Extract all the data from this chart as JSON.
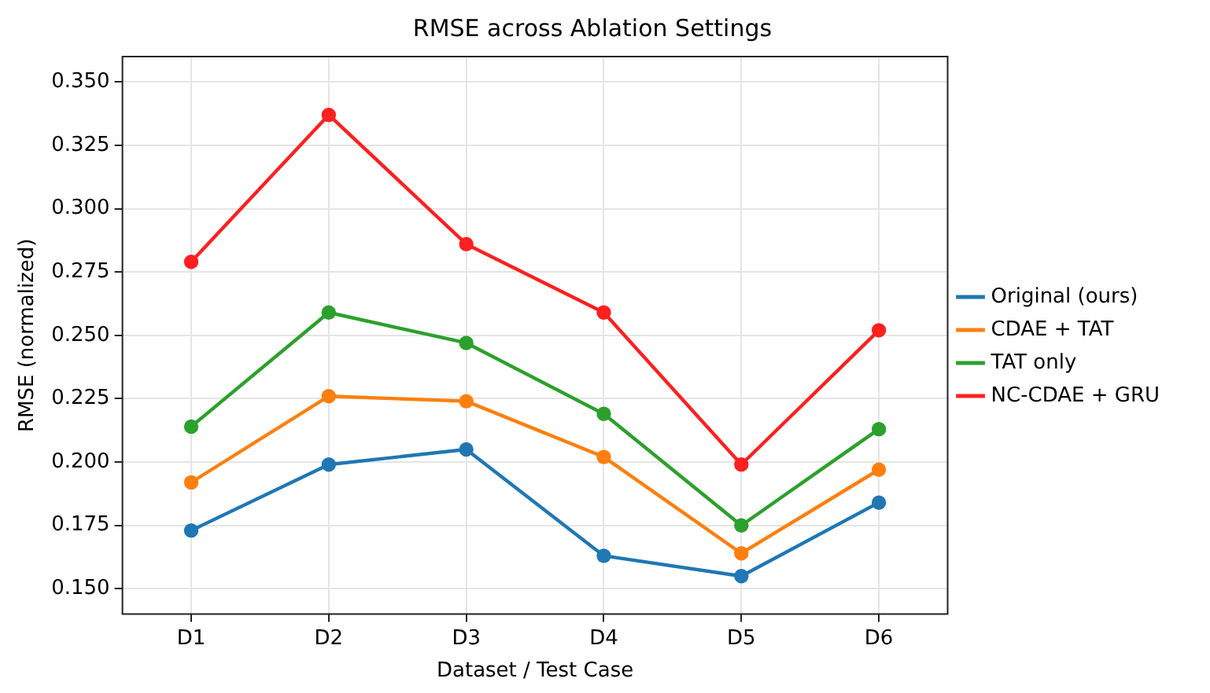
{
  "chart_data": {
    "type": "line",
    "title": "RMSE across Ablation Settings",
    "xlabel": "Dataset / Test Case",
    "ylabel": "RMSE (normalized)",
    "categories": [
      "D1",
      "D2",
      "D3",
      "D4",
      "D5",
      "D6"
    ],
    "series": [
      {
        "name": "Original (ours)",
        "color": "#1f77b4",
        "values": [
          0.173,
          0.199,
          0.205,
          0.163,
          0.155,
          0.184
        ]
      },
      {
        "name": "CDAE + TAT",
        "color": "#ff7f0e",
        "values": [
          0.192,
          0.226,
          0.224,
          0.202,
          0.164,
          0.197
        ]
      },
      {
        "name": "TAT only",
        "color": "#2ca02c",
        "values": [
          0.214,
          0.259,
          0.247,
          0.219,
          0.175,
          0.213
        ]
      },
      {
        "name": "NC-CDAE + GRU",
        "color": "#ff2020",
        "values": [
          0.279,
          0.337,
          0.286,
          0.259,
          0.199,
          0.252
        ]
      }
    ],
    "ylim": [
      0.14,
      0.36
    ],
    "yticks": [
      {
        "value": 0.15,
        "label": "0.150"
      },
      {
        "value": 0.175,
        "label": "0.175"
      },
      {
        "value": 0.2,
        "label": "0.200"
      },
      {
        "value": 0.225,
        "label": "0.225"
      },
      {
        "value": 0.25,
        "label": "0.250"
      },
      {
        "value": 0.275,
        "label": "0.275"
      },
      {
        "value": 0.3,
        "label": "0.300"
      },
      {
        "value": 0.325,
        "label": "0.325"
      },
      {
        "value": 0.35,
        "label": "0.350"
      }
    ],
    "grid": true,
    "legend": "right",
    "marker": "circle",
    "line_style": "solid"
  }
}
